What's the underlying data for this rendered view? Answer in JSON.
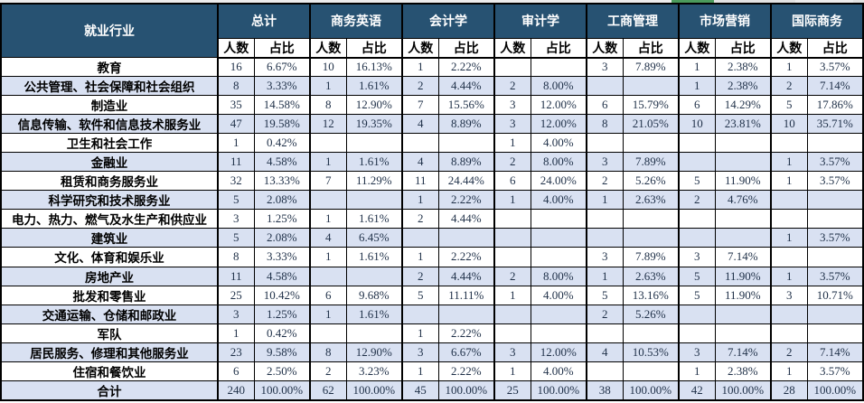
{
  "chart_data": {
    "type": "table",
    "header": {
      "industry": "就业行业",
      "groups": [
        "总计",
        "商务英语",
        "会计学",
        "审计学",
        "工商管理",
        "市场营销",
        "国际商务"
      ],
      "sub": {
        "count": "人数",
        "ratio": "占比"
      }
    },
    "rows": [
      {
        "industry": "教育",
        "cells": [
          "16",
          "6.67%",
          "10",
          "16.13%",
          "1",
          "2.22%",
          "",
          "",
          "3",
          "7.89%",
          "1",
          "2.38%",
          "1",
          "3.57%"
        ]
      },
      {
        "industry": "公共管理、社会保障和社会组织",
        "cells": [
          "8",
          "3.33%",
          "1",
          "1.61%",
          "2",
          "4.44%",
          "2",
          "8.00%",
          "",
          "",
          "1",
          "2.38%",
          "2",
          "7.14%"
        ]
      },
      {
        "industry": "制造业",
        "cells": [
          "35",
          "14.58%",
          "8",
          "12.90%",
          "7",
          "15.56%",
          "3",
          "12.00%",
          "6",
          "15.79%",
          "6",
          "14.29%",
          "5",
          "17.86%"
        ]
      },
      {
        "industry": "信息传输、软件和信息技术服务业",
        "cells": [
          "47",
          "19.58%",
          "12",
          "19.35%",
          "4",
          "8.89%",
          "3",
          "12.00%",
          "8",
          "21.05%",
          "10",
          "23.81%",
          "10",
          "35.71%"
        ]
      },
      {
        "industry": "卫生和社会工作",
        "cells": [
          "1",
          "0.42%",
          "",
          "",
          "",
          "",
          "1",
          "4.00%",
          "",
          "",
          "",
          "",
          "",
          ""
        ]
      },
      {
        "industry": "金融业",
        "cells": [
          "11",
          "4.58%",
          "1",
          "1.61%",
          "4",
          "8.89%",
          "2",
          "8.00%",
          "3",
          "7.89%",
          "",
          "",
          "1",
          "3.57%"
        ]
      },
      {
        "industry": "租赁和商务服务业",
        "cells": [
          "32",
          "13.33%",
          "7",
          "11.29%",
          "11",
          "24.44%",
          "6",
          "24.00%",
          "2",
          "5.26%",
          "5",
          "11.90%",
          "1",
          "3.57%"
        ]
      },
      {
        "industry": "科学研究和技术服务业",
        "cells": [
          "5",
          "2.08%",
          "",
          "",
          "1",
          "2.22%",
          "1",
          "4.00%",
          "1",
          "2.63%",
          "2",
          "4.76%",
          "",
          ""
        ]
      },
      {
        "industry": "电力、热力、燃气及水生产和供应业",
        "cells": [
          "3",
          "1.25%",
          "1",
          "1.61%",
          "2",
          "4.44%",
          "",
          "",
          "",
          "",
          "",
          "",
          "",
          ""
        ]
      },
      {
        "industry": "建筑业",
        "cells": [
          "5",
          "2.08%",
          "4",
          "6.45%",
          "",
          "",
          "",
          "",
          "",
          "",
          "",
          "",
          "1",
          "3.57%"
        ]
      },
      {
        "industry": "文化、体育和娱乐业",
        "cells": [
          "8",
          "3.33%",
          "1",
          "1.61%",
          "1",
          "2.22%",
          "",
          "",
          "3",
          "7.89%",
          "3",
          "7.14%",
          "",
          ""
        ]
      },
      {
        "industry": "房地产业",
        "cells": [
          "11",
          "4.58%",
          "",
          "",
          "2",
          "4.44%",
          "2",
          "8.00%",
          "1",
          "2.63%",
          "5",
          "11.90%",
          "1",
          "3.57%"
        ]
      },
      {
        "industry": "批发和零售业",
        "cells": [
          "25",
          "10.42%",
          "6",
          "9.68%",
          "5",
          "11.11%",
          "1",
          "4.00%",
          "5",
          "13.16%",
          "5",
          "11.90%",
          "3",
          "10.71%"
        ]
      },
      {
        "industry": "交通运输、仓储和邮政业",
        "cells": [
          "3",
          "1.25%",
          "1",
          "1.61%",
          "",
          "",
          "",
          "",
          "2",
          "5.26%",
          "",
          "",
          "",
          ""
        ]
      },
      {
        "industry": "军队",
        "cells": [
          "1",
          "0.42%",
          "",
          "",
          "1",
          "2.22%",
          "",
          "",
          "",
          "",
          "",
          "",
          "",
          ""
        ]
      },
      {
        "industry": "居民服务、修理和其他服务业",
        "cells": [
          "23",
          "9.58%",
          "8",
          "12.90%",
          "3",
          "6.67%",
          "3",
          "12.00%",
          "4",
          "10.53%",
          "3",
          "7.14%",
          "2",
          "7.14%"
        ]
      },
      {
        "industry": "住宿和餐饮业",
        "cells": [
          "6",
          "2.50%",
          "2",
          "3.23%",
          "1",
          "2.22%",
          "1",
          "4.00%",
          "",
          "",
          "1",
          "2.38%",
          "1",
          "3.57%"
        ]
      },
      {
        "industry": "合计",
        "cells": [
          "240",
          "100.00%",
          "62",
          "100.00%",
          "45",
          "100.00%",
          "25",
          "100.00%",
          "38",
          "100.00%",
          "42",
          "100.00%",
          "28",
          "100.00%"
        ]
      }
    ]
  },
  "colors": {
    "header_bg": "#275272",
    "header_text": "#ffffff",
    "alt_row_bg": "#d9e1f2",
    "grid": "#000000",
    "body_number_text": "#1f3048",
    "selection_green": "#4c9b5c",
    "top_strip_gray": "#ececec"
  }
}
